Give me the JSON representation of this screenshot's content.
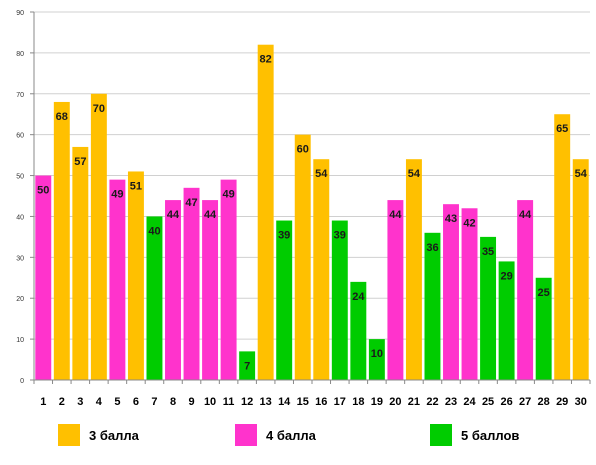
{
  "chart_data": {
    "type": "bar",
    "categories": [
      "1",
      "2",
      "3",
      "4",
      "5",
      "6",
      "7",
      "8",
      "9",
      "10",
      "11",
      "12",
      "13",
      "14",
      "15",
      "16",
      "17",
      "18",
      "19",
      "20",
      "21",
      "22",
      "23",
      "24",
      "25",
      "26",
      "27",
      "28",
      "29",
      "30"
    ],
    "values": [
      50,
      68,
      57,
      70,
      49,
      51,
      40,
      44,
      47,
      44,
      49,
      7,
      82,
      39,
      60,
      54,
      39,
      24,
      10,
      44,
      54,
      36,
      43,
      42,
      35,
      29,
      44,
      25,
      65,
      54
    ],
    "groups": [
      "4",
      "3",
      "3",
      "3",
      "4",
      "3",
      "5",
      "4",
      "4",
      "4",
      "4",
      "5",
      "3",
      "5",
      "3",
      "3",
      "5",
      "5",
      "5",
      "4",
      "3",
      "5",
      "4",
      "4",
      "5",
      "5",
      "4",
      "5",
      "3",
      "3"
    ],
    "legend": [
      {
        "key": "3",
        "name": "3 балла",
        "color": "#FFC000"
      },
      {
        "key": "4",
        "name": "4 балла",
        "color": "#FF33CC"
      },
      {
        "key": "5",
        "name": "5 баллов",
        "color": "#00CC00"
      }
    ],
    "yticks": [
      0,
      10,
      20,
      30,
      40,
      50,
      60,
      70,
      80,
      90
    ],
    "ylim": [
      0,
      90
    ],
    "grid": true,
    "legend_position": "bottom"
  }
}
